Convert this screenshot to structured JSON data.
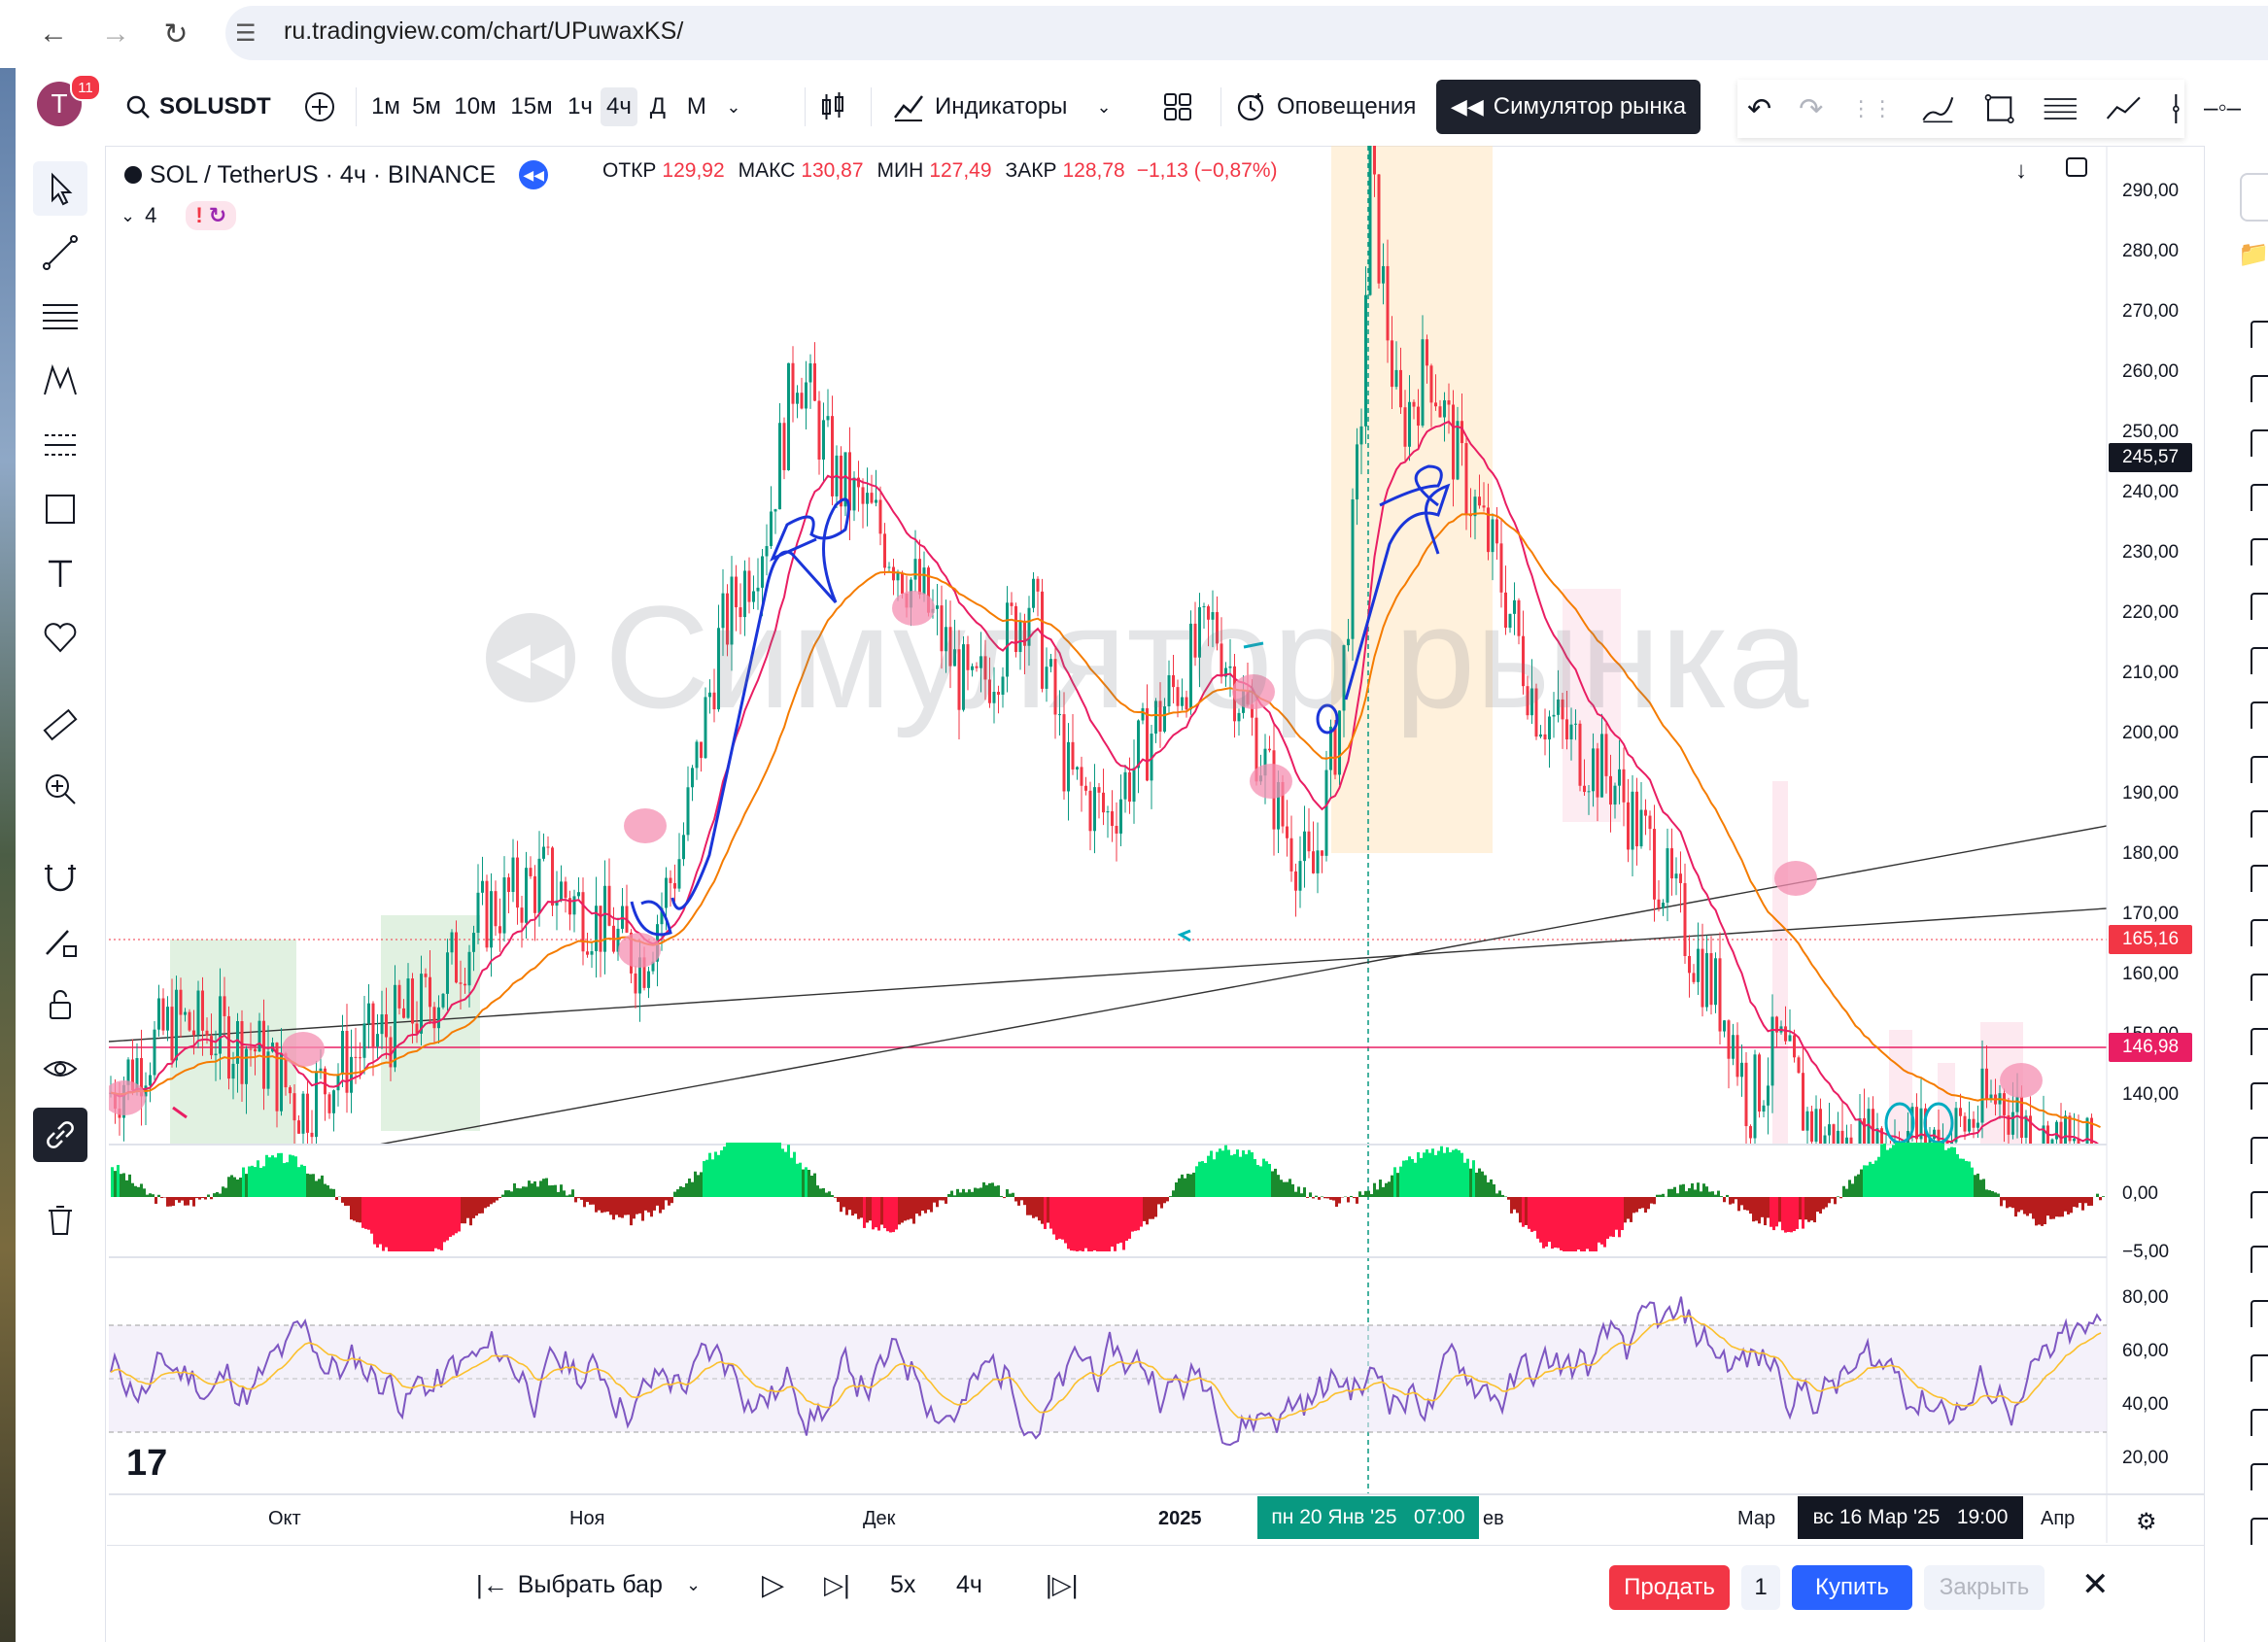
{
  "browser": {
    "url": "ru.tradingview.com/chart/UPuwaxKS/"
  },
  "toolbar": {
    "avatar_letter": "T",
    "notifications": "11",
    "symbol": "SOLUSDT",
    "timeframes": [
      "1м",
      "5м",
      "10м",
      "15м",
      "1ч",
      "4ч",
      "Д",
      "М"
    ],
    "active_timeframe": "4ч",
    "indicators_label": "Индикаторы",
    "alerts_label": "Оповещения",
    "simulator_label": "Симулятор рынка"
  },
  "legend": {
    "title": "SOL / TetherUS · 4ч · BINANCE",
    "open_label": "ОТКР",
    "open": "129,92",
    "high_label": "МАКС",
    "high": "130,87",
    "low_label": "МИН",
    "low": "127,49",
    "close_label": "ЗАКР",
    "close": "128,78",
    "change": "−1,13 (−0,87%)",
    "studies_count": "4"
  },
  "watermark": "Симулятор рынка",
  "price_scale": {
    "ticks": [
      "290,00",
      "280,00",
      "270,00",
      "260,00",
      "250,00",
      "240,00",
      "230,00",
      "220,00",
      "210,00",
      "200,00",
      "190,00",
      "180,00",
      "170,00",
      "160,00",
      "150,00",
      "140,00"
    ],
    "current_price": "245,57",
    "level1": "165,16",
    "level2": "146,98",
    "osc_ticks": [
      "0,00",
      "−5,00"
    ],
    "rsi_ticks": [
      "80,00",
      "60,00",
      "40,00",
      "20,00"
    ]
  },
  "time_scale": {
    "labels": [
      "Окт",
      "Ноя",
      "Дек",
      "2025",
      "ев",
      "Мар",
      "Апр"
    ],
    "crosshair_time": "пн 20 Янв '25   07:00",
    "replay_time": "вс 16 Мар '25   19:00"
  },
  "bottom_bar": {
    "select_bar": "Выбрать бар",
    "speed": "5x",
    "interval": "4ч",
    "sell": "Продать",
    "quantity": "1",
    "buy": "Купить",
    "close": "Закрыть"
  },
  "colors": {
    "up": "#089981",
    "down": "#f23645",
    "ema_fast": "#e91e63",
    "ema_slow": "#f57c00",
    "rsi": "#7e57c2",
    "rsi_ma": "#fbc02d",
    "drawing_blue": "#1a35d9",
    "drawing_cyan": "#00acc1",
    "highlight_pink": "#f48fb1"
  },
  "chart_data": {
    "type": "candlestick",
    "symbol": "SOL / TetherUS",
    "interval": "4ч",
    "ylim": [
      130,
      295
    ],
    "x_labels": [
      "Окт",
      "Ноя",
      "Дек",
      "2025",
      "Мар",
      "Апр"
    ],
    "approx_path": [
      {
        "x": "Sep",
        "y": 140
      },
      {
        "x": "Окт",
        "y": 150
      },
      {
        "x": "Окт",
        "y": 138
      },
      {
        "x": "Ноя",
        "y": 165
      },
      {
        "x": "Ноя",
        "y": 210
      },
      {
        "x": "Ноя",
        "y": 262
      },
      {
        "x": "Дек",
        "y": 235
      },
      {
        "x": "Дек",
        "y": 185
      },
      {
        "x": "2025",
        "y": 215
      },
      {
        "x": "2025",
        "y": 175
      },
      {
        "x": "Jan",
        "y": 293
      },
      {
        "x": "Feb",
        "y": 240
      },
      {
        "x": "Feb",
        "y": 195
      },
      {
        "x": "Мар",
        "y": 135
      },
      {
        "x": "Мар",
        "y": 150
      },
      {
        "x": "Апр",
        "y": 129
      }
    ],
    "horizontal_levels": [
      165.16,
      146.98
    ],
    "last_close": 128.78
  }
}
